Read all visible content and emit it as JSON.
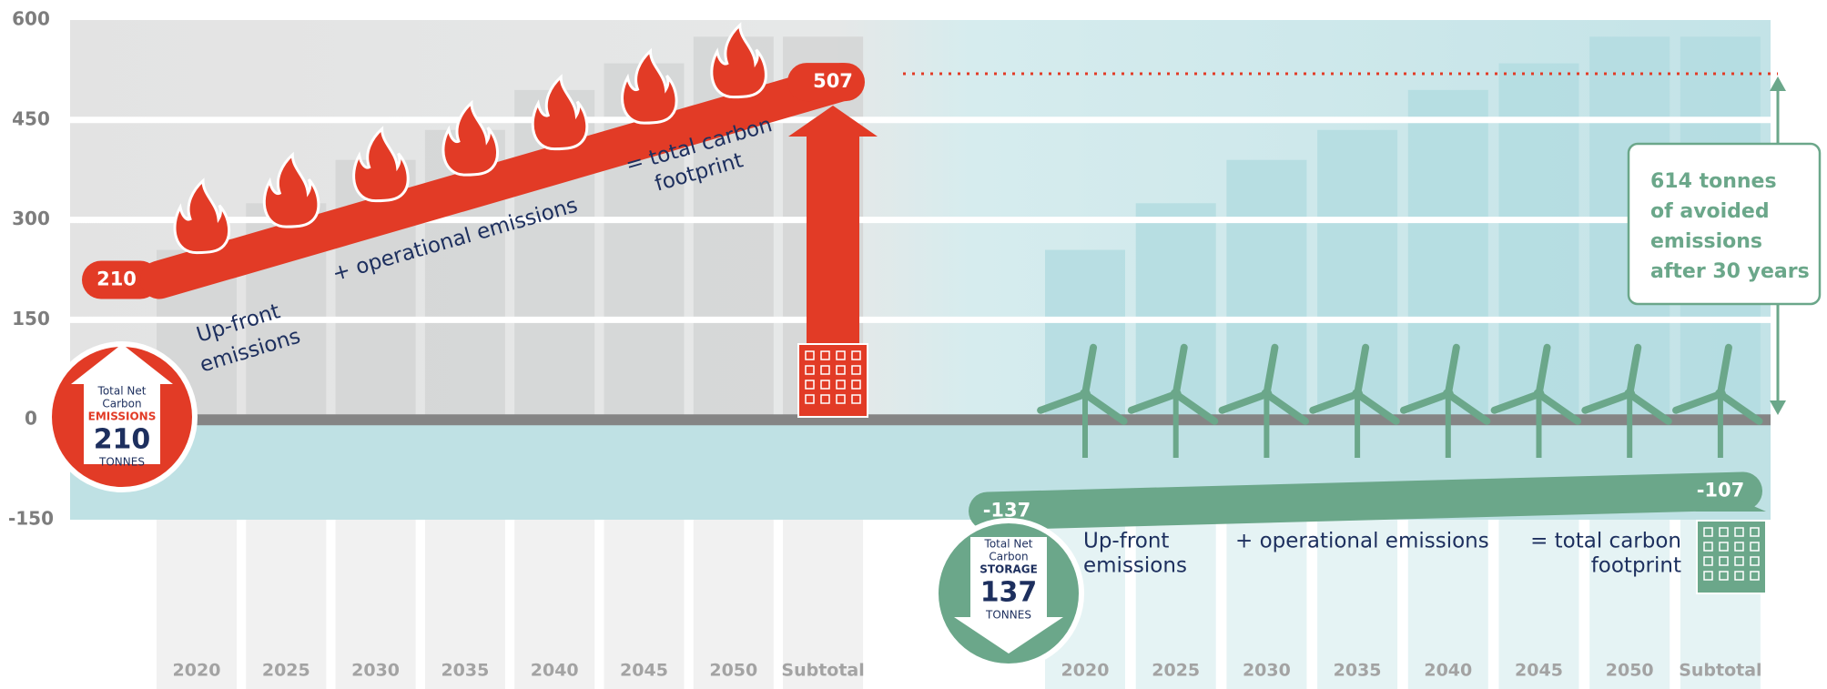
{
  "chart_data": {
    "type": "bar",
    "ylim": [
      -150,
      600
    ],
    "yticks": [
      -150,
      0,
      150,
      300,
      450,
      600
    ],
    "grid": true,
    "categories": [
      "2020",
      "2025",
      "2030",
      "2035",
      "2040",
      "2045",
      "2050",
      "Subtotal",
      "2020",
      "2025",
      "2030",
      "2035",
      "2040",
      "2045",
      "2050",
      "Subtotal"
    ],
    "values": [
      255,
      325,
      390,
      435,
      495,
      535,
      575,
      575,
      255,
      325,
      390,
      435,
      495,
      535,
      575,
      575
    ],
    "colors": [
      "#d3d5d5",
      "#b3dce1"
    ],
    "bands": [
      {
        "values": [
          210,
          507
        ],
        "color": "#e23b26"
      },
      {
        "values": [
          -137,
          -107
        ],
        "color": "#6ba78a"
      }
    ],
    "annotations": {
      "emissions": {
        "upfront": [
          "Up-front",
          "emissions"
        ],
        "operational": "+ operational emissions",
        "total": [
          "= total carbon",
          "footprint"
        ]
      },
      "storage": {
        "upfront": [
          "Up-front",
          "emissions"
        ],
        "operational": "+ operational emissions",
        "total": [
          "= total carbon",
          "footprint"
        ]
      }
    },
    "badges": [
      {
        "lines": [
          "Total Net",
          "Carbon"
        ],
        "kind": "EMISSIONS",
        "amount": 210,
        "unit": "TONNES"
      },
      {
        "lines": [
          "Total Net",
          "Carbon"
        ],
        "kind": "STORAGE",
        "amount": 137,
        "unit": "TONNES"
      }
    ],
    "avoided": [
      "614 tonnes",
      "of avoided",
      "emissions",
      "after 30 years"
    ]
  }
}
